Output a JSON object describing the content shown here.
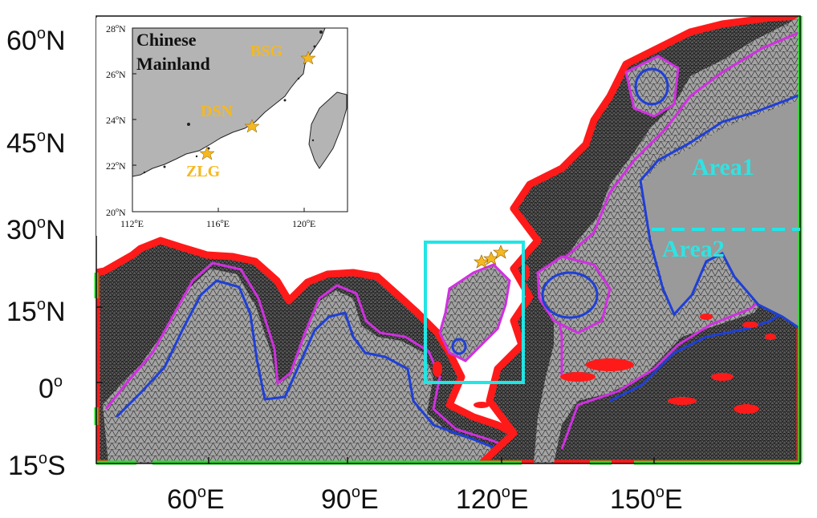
{
  "main_map": {
    "lat_labels": [
      {
        "deg": "60",
        "hemi": "N"
      },
      {
        "deg": "45",
        "hemi": "N"
      },
      {
        "deg": "30",
        "hemi": "N"
      },
      {
        "deg": "15",
        "hemi": "N"
      },
      {
        "deg": "0",
        "hemi": ""
      },
      {
        "deg": "15",
        "hemi": "S"
      }
    ],
    "lon_labels": [
      {
        "deg": "60",
        "hemi": "E"
      },
      {
        "deg": "90",
        "hemi": "E"
      },
      {
        "deg": "120",
        "hemi": "E"
      },
      {
        "deg": "150",
        "hemi": "E"
      }
    ],
    "degree_symbol": "o",
    "areas": [
      {
        "label": "Area1"
      },
      {
        "label": "Area2"
      }
    ],
    "highlight_box_color": "#22e5e5",
    "coast_color": "#ff1a1a",
    "contour_inner_color": "#1f3fd6",
    "contour_outer_color": "#d030e0",
    "open_boundary_color": "#22e022",
    "land_color": "#ffffff",
    "deep_mesh_color": "#9a9a9a"
  },
  "inset_map": {
    "land_label_line1": "Chinese",
    "land_label_line2": "Mainland",
    "lat_ticks": [
      "28",
      "26",
      "24",
      "22",
      "20"
    ],
    "lon_ticks": [
      "112",
      "116",
      "120"
    ],
    "lat_hemi": "N",
    "lon_hemi": "E",
    "stations": [
      {
        "name": "BSG"
      },
      {
        "name": "DSN"
      },
      {
        "name": "ZLG"
      }
    ],
    "land_color": "#b4b4b4",
    "station_color": "#f5b820"
  }
}
